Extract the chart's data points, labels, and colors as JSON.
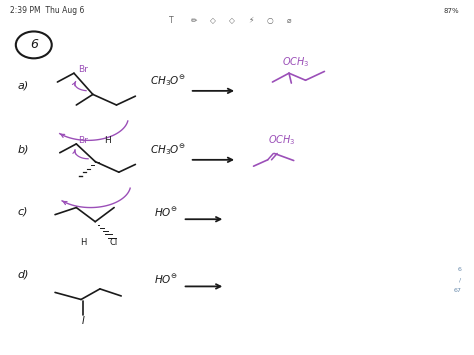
{
  "bg_color": "#ffffff",
  "purple_color": "#9B4FB8",
  "dark_color": "#1a1a1a",
  "header_text": "2:39 PM  Thu Aug 6",
  "problem_number": "6",
  "pct": "87%",
  "page_nums": [
    "6",
    "/",
    "67"
  ]
}
